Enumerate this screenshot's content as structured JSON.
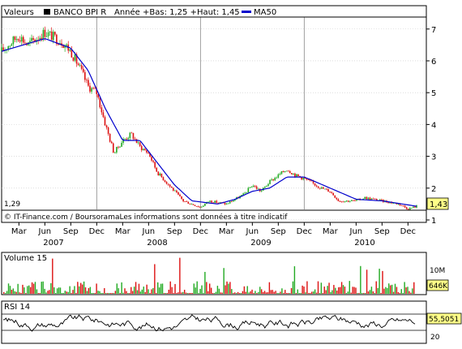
{
  "legend": {
    "valeurs_label": "Valeurs",
    "name": "BANCO BPI R",
    "stats": "Année +Bas: 1,25 +Haut: 1,45",
    "ma_label": "MA50"
  },
  "colors": {
    "up": "#22aa22",
    "down": "#dd1111",
    "ma": "#0000cc",
    "grid": "#c8c8c8",
    "text": "#000000",
    "badge_yellow": "#ffff88",
    "year_line": "#888888"
  },
  "footer": {
    "copyright": "© IT-Finance.com / BoursoramaLes informations sont données à titre indicatif",
    "lowest_label": "1,29",
    "last_price_label": "1,43"
  },
  "x_axis": {
    "months": [
      "Mar",
      "Jun",
      "Sep",
      "Dec",
      "Mar",
      "Jun",
      "Sep",
      "Dec",
      "Mar",
      "Jun",
      "Sep",
      "Dec",
      "Mar",
      "Jun",
      "Sep",
      "Dec"
    ],
    "years": [
      "2007",
      "2008",
      "2009",
      "2010"
    ]
  },
  "volume": {
    "title": "Volume 15",
    "tick_label": "10M",
    "last_label": "646K"
  },
  "rsi": {
    "title": "RSI 14",
    "last_label": "55,5051",
    "tick_label": "20"
  },
  "chart_data": {
    "type": "candlestick",
    "y_ticks": [
      "1",
      "2",
      "3",
      "4",
      "5",
      "6",
      "7"
    ],
    "ylim": [
      1,
      7.3
    ],
    "price_path": [
      [
        "2007-01",
        6.3
      ],
      [
        "2007-03",
        6.8
      ],
      [
        "2007-04",
        6.5
      ],
      [
        "2007-06",
        6.9
      ],
      [
        "2007-08",
        6.6
      ],
      [
        "2007-09",
        6.3
      ],
      [
        "2007-10",
        5.8
      ],
      [
        "2007-11",
        5.2
      ],
      [
        "2007-12",
        5.0
      ],
      [
        "2008-01",
        4.0
      ],
      [
        "2008-02",
        3.1
      ],
      [
        "2008-03",
        3.5
      ],
      [
        "2008-04",
        3.7
      ],
      [
        "2008-05",
        3.3
      ],
      [
        "2008-06",
        3.1
      ],
      [
        "2008-07",
        2.5
      ],
      [
        "2008-08",
        2.2
      ],
      [
        "2008-10",
        1.6
      ],
      [
        "2008-12",
        1.4
      ],
      [
        "2009-01",
        1.6
      ],
      [
        "2009-03",
        1.5
      ],
      [
        "2009-05",
        1.8
      ],
      [
        "2009-06",
        2.1
      ],
      [
        "2009-07",
        1.9
      ],
      [
        "2009-08",
        2.2
      ],
      [
        "2009-10",
        2.6
      ],
      [
        "2009-11",
        2.4
      ],
      [
        "2009-12",
        2.3
      ],
      [
        "2010-02",
        2.0
      ],
      [
        "2010-03",
        1.9
      ],
      [
        "2010-04",
        1.6
      ],
      [
        "2010-06",
        1.6
      ],
      [
        "2010-07",
        1.7
      ],
      [
        "2010-09",
        1.6
      ],
      [
        "2010-11",
        1.5
      ],
      [
        "2010-12",
        1.35
      ],
      [
        "2011-01",
        1.43
      ]
    ],
    "ma50_path": [
      [
        "2007-01",
        6.3
      ],
      [
        "2007-06",
        6.7
      ],
      [
        "2007-09",
        6.4
      ],
      [
        "2007-11",
        5.7
      ],
      [
        "2008-01",
        4.5
      ],
      [
        "2008-03",
        3.5
      ],
      [
        "2008-05",
        3.5
      ],
      [
        "2008-07",
        2.8
      ],
      [
        "2008-09",
        2.1
      ],
      [
        "2008-11",
        1.6
      ],
      [
        "2009-02",
        1.5
      ],
      [
        "2009-04",
        1.65
      ],
      [
        "2009-06",
        1.9
      ],
      [
        "2009-08",
        2.0
      ],
      [
        "2009-10",
        2.35
      ],
      [
        "2009-12",
        2.35
      ],
      [
        "2010-03",
        2.0
      ],
      [
        "2010-06",
        1.65
      ],
      [
        "2010-09",
        1.6
      ],
      [
        "2011-01",
        1.43
      ]
    ],
    "volume_max": 15,
    "rsi_levels": [
      30,
      70
    ]
  }
}
